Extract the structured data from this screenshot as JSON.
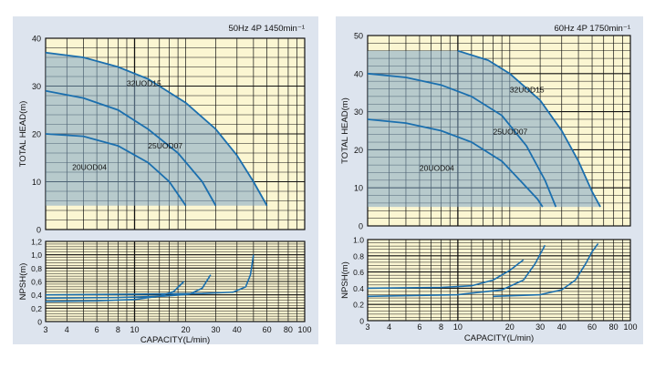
{
  "chart_data": [
    {
      "type": "line",
      "title": "50Hz 4P 1450min⁻¹",
      "xlabel": "CAPACITY(L/min)",
      "x_scale": "log",
      "xlim": [
        3,
        100
      ],
      "x_ticks": [
        3,
        4,
        6,
        8,
        10,
        20,
        30,
        40,
        60,
        80,
        100
      ],
      "head": {
        "ylabel": "TOTAL HEAD(m)",
        "ylim": [
          0,
          40
        ],
        "y_ticks": [
          0,
          10,
          20,
          30,
          40
        ],
        "series": [
          {
            "name": "32UOD15",
            "x": [
              3,
              5,
              8,
              12,
              20,
              30,
              40,
              50,
              60
            ],
            "y": [
              37,
              36,
              34,
              31.5,
              26.5,
              21,
              15.5,
              10,
              5
            ]
          },
          {
            "name": "25UOD07",
            "x": [
              3,
              5,
              8,
              12,
              18,
              25,
              30
            ],
            "y": [
              29,
              27.5,
              25,
              21,
              16,
              10,
              5
            ]
          },
          {
            "name": "20UOD04",
            "x": [
              3,
              5,
              8,
              12,
              16,
              20
            ],
            "y": [
              20,
              19.5,
              17.5,
              14,
              10,
              5
            ]
          }
        ]
      },
      "npsh": {
        "ylabel": "NPSH(m)",
        "ylim": [
          0,
          1.2
        ],
        "y_ticks": [
          0,
          0.2,
          0.4,
          0.6,
          0.8,
          1.0,
          1.2
        ],
        "y_tick_labels": [
          "0",
          "0,2",
          "0,4",
          "0,6",
          "0,8",
          "1,0",
          "1,2"
        ],
        "series": [
          {
            "name": "20UOD04",
            "x": [
              3,
              6,
              10,
              14,
              17,
              19.5
            ],
            "y": [
              0.3,
              0.31,
              0.33,
              0.38,
              0.45,
              0.6
            ]
          },
          {
            "name": "25UOD07",
            "x": [
              3,
              8,
              15,
              21,
              25,
              28
            ],
            "y": [
              0.35,
              0.36,
              0.38,
              0.41,
              0.5,
              0.7
            ]
          },
          {
            "name": "32UOD15",
            "x": [
              3,
              10,
              25,
              38,
              45,
              48,
              50
            ],
            "y": [
              0.4,
              0.41,
              0.42,
              0.44,
              0.52,
              0.7,
              1.0
            ]
          }
        ]
      },
      "shaded_region": {
        "x": [
          3,
          60
        ],
        "y": [
          5,
          37
        ]
      }
    },
    {
      "type": "line",
      "title": "60Hz 4P 1750min⁻¹",
      "xlabel": "CAPACITY(L/min)",
      "x_scale": "log",
      "xlim": [
        3,
        100
      ],
      "x_ticks": [
        3,
        4,
        6,
        8,
        10,
        20,
        30,
        40,
        60,
        80,
        100
      ],
      "head": {
        "ylabel": "TOTAL HEAD(m)",
        "ylim": [
          0,
          50
        ],
        "y_ticks": [
          0,
          10,
          20,
          30,
          40,
          50
        ],
        "series": [
          {
            "name": "32UOD15",
            "x": [
              10,
              15,
              20,
              30,
              40,
              50,
              60,
              67
            ],
            "y": [
              46,
              43.5,
              40,
              33,
              25,
              17,
              9,
              5
            ]
          },
          {
            "name": "25UOD07",
            "x": [
              3,
              5,
              8,
              12,
              18,
              25,
              32,
              37
            ],
            "y": [
              40,
              39,
              37,
              34,
              29,
              21,
              12,
              5
            ]
          },
          {
            "name": "20UOD04",
            "x": [
              3,
              5,
              8,
              12,
              18,
              24,
              29,
              31
            ],
            "y": [
              28,
              27,
              25,
              22,
              17,
              11,
              7,
              5
            ]
          }
        ]
      },
      "npsh": {
        "ylabel": "NPSH(m)",
        "ylim": [
          0,
          1.0
        ],
        "y_ticks": [
          0,
          0.2,
          0.4,
          0.6,
          0.8,
          1.0
        ],
        "y_tick_labels": [
          "0",
          "0.2",
          "0.4",
          "0.6",
          "0.8",
          "1.0"
        ],
        "series": [
          {
            "name": "20UOD04",
            "x": [
              3,
              8,
              12,
              16,
              20,
              24
            ],
            "y": [
              0.4,
              0.41,
              0.43,
              0.5,
              0.62,
              0.75
            ]
          },
          {
            "name": "25UOD07",
            "x": [
              3,
              10,
              18,
              24,
              28,
              32
            ],
            "y": [
              0.3,
              0.32,
              0.38,
              0.5,
              0.7,
              0.93
            ]
          },
          {
            "name": "32UOD15",
            "x": [
              16,
              30,
              40,
              48,
              55,
              60,
              65
            ],
            "y": [
              0.3,
              0.32,
              0.38,
              0.5,
              0.7,
              0.85,
              0.95
            ]
          }
        ]
      },
      "shaded_region": {
        "x": [
          3,
          67
        ],
        "y": [
          5,
          46
        ]
      }
    }
  ]
}
